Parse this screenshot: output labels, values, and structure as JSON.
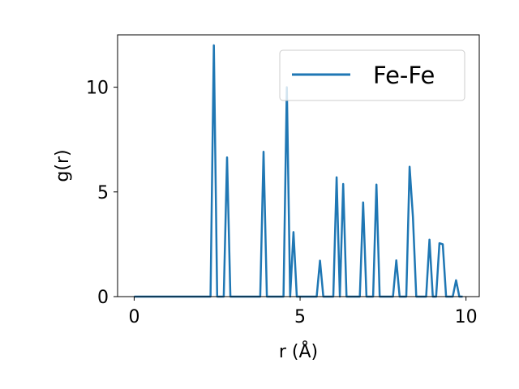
{
  "chart_data": {
    "type": "line",
    "xlabel": "r (Å)",
    "ylabel": "g(r)",
    "xlim": [
      -0.5,
      10.4
    ],
    "ylim": [
      0,
      12.5
    ],
    "xticks": [
      0,
      5,
      10
    ],
    "yticks": [
      0,
      5,
      10
    ],
    "grid": false,
    "legend_position": "top-right",
    "series": [
      {
        "name": "Fe-Fe",
        "color": "#1f77b4",
        "x": [
          0,
          2.3,
          2.4,
          2.5,
          2.7,
          2.8,
          2.9,
          3.8,
          3.9,
          4.0,
          4.5,
          4.6,
          4.7,
          4.8,
          4.9,
          5.5,
          5.6,
          5.7,
          6.0,
          6.1,
          6.2,
          6.3,
          6.4,
          6.8,
          6.9,
          7.0,
          7.2,
          7.3,
          7.4,
          7.8,
          7.9,
          8.0,
          8.2,
          8.3,
          8.4,
          8.5,
          8.8,
          8.9,
          9.0,
          9.1,
          9.2,
          9.3,
          9.4,
          9.6,
          9.7,
          9.8,
          9.9
        ],
        "y": [
          0,
          0,
          12.0,
          0,
          0,
          6.65,
          0,
          0,
          6.92,
          0,
          0,
          10.0,
          0,
          3.08,
          0,
          0,
          1.72,
          0,
          0,
          5.7,
          0,
          5.38,
          0,
          0,
          4.5,
          0,
          0,
          5.35,
          0,
          0,
          1.73,
          0,
          0,
          6.2,
          3.8,
          0,
          0,
          2.72,
          0,
          0,
          2.55,
          2.5,
          0,
          0,
          0.78,
          0,
          0
        ]
      }
    ]
  }
}
